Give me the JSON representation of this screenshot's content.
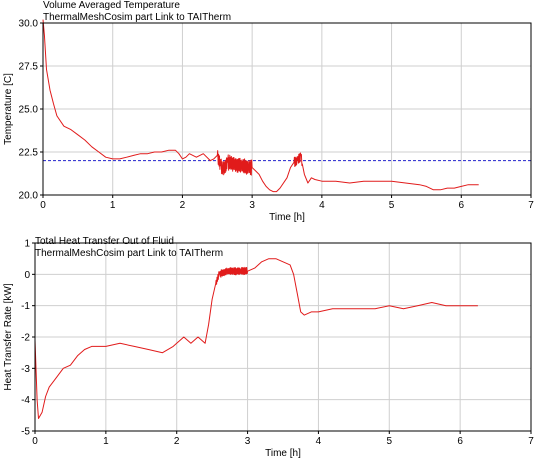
{
  "colors": {
    "series": "#e11b1b",
    "reference": "#2222cc",
    "grid": "#cfcfcf",
    "axes": "#000000"
  },
  "chart_data": [
    {
      "type": "line",
      "title": "Volume Averaged Temperature",
      "subtitle": "ThermalMeshCosim part Link  to  TAITherm",
      "xlabel": "Time [h]",
      "ylabel": "Temperature [C]",
      "xlim": [
        0,
        7
      ],
      "ylim": [
        20,
        30
      ],
      "xticks": [
        "0",
        "1",
        "2",
        "3",
        "4",
        "5",
        "6",
        "7"
      ],
      "yticks": [
        "20.0",
        "22.5",
        "25.0",
        "27.5",
        "30.0"
      ],
      "grid": true,
      "reference_line": {
        "y": 22.0,
        "style": "dashed"
      },
      "series": [
        {
          "x": [
            0,
            0.02,
            0.05,
            0.1,
            0.15,
            0.2,
            0.3,
            0.4,
            0.5,
            0.6,
            0.7,
            0.8,
            0.9,
            1.0,
            1.1,
            1.2,
            1.3,
            1.4,
            1.5,
            1.6,
            1.7,
            1.8,
            1.9,
            1.95,
            2.0,
            2.05,
            2.1,
            2.2,
            2.3,
            2.4,
            2.45,
            2.5,
            2.55,
            2.58,
            2.65,
            2.75,
            2.85,
            2.95,
            3.0,
            3.05,
            3.1,
            3.15,
            3.2,
            3.25,
            3.3,
            3.35,
            3.4,
            3.5,
            3.55,
            3.6,
            3.65,
            3.7,
            3.72,
            3.75,
            3.8,
            3.85,
            3.9,
            4.0,
            4.2,
            4.4,
            4.6,
            4.8,
            5.0,
            5.2,
            5.4,
            5.5,
            5.6,
            5.7,
            5.8,
            5.9,
            6.0,
            6.1,
            6.2,
            6.25
          ],
          "y": [
            30.2,
            29.3,
            27.3,
            26.1,
            25.3,
            24.6,
            24.0,
            23.8,
            23.5,
            23.2,
            22.8,
            22.5,
            22.2,
            22.1,
            22.1,
            22.2,
            22.3,
            22.4,
            22.4,
            22.5,
            22.5,
            22.6,
            22.6,
            22.4,
            22.1,
            22.2,
            22.4,
            22.2,
            22.4,
            22.0,
            22.1,
            22.3,
            21.7,
            21.5,
            21.9,
            21.8,
            21.7,
            21.6,
            21.6,
            21.4,
            21.2,
            20.8,
            20.5,
            20.3,
            20.2,
            20.2,
            20.4,
            21.0,
            21.6,
            21.9,
            22.0,
            22.3,
            21.8,
            21.2,
            20.7,
            21.0,
            20.9,
            20.8,
            20.8,
            20.7,
            20.8,
            20.8,
            20.8,
            20.7,
            20.6,
            20.5,
            20.3,
            20.3,
            20.4,
            20.4,
            20.5,
            20.6,
            20.6,
            20.6
          ]
        }
      ],
      "oscillations": [
        {
          "x_start": 2.5,
          "x_end": 3.0,
          "amplitude": 0.45
        },
        {
          "x_start": 3.6,
          "x_end": 3.72,
          "amplitude": 0.3
        }
      ]
    },
    {
      "type": "line",
      "title": "Total Heat Transfer Out of Fluid",
      "subtitle": "ThermalMeshCosim part Link  to  TAITherm",
      "xlabel": "Time [h]",
      "ylabel": "Heat Transfer Rate [kW]",
      "xlim": [
        0,
        7
      ],
      "ylim": [
        -5,
        1
      ],
      "xticks": [
        "0",
        "1",
        "2",
        "3",
        "4",
        "5",
        "6",
        "7"
      ],
      "yticks": [
        "-5",
        "-4",
        "-3",
        "-2",
        "-1",
        "0",
        "1"
      ],
      "grid": true,
      "series": [
        {
          "x": [
            0,
            0.03,
            0.05,
            0.1,
            0.15,
            0.2,
            0.3,
            0.4,
            0.5,
            0.6,
            0.7,
            0.8,
            1.0,
            1.2,
            1.4,
            1.6,
            1.8,
            1.95,
            2.0,
            2.05,
            2.1,
            2.2,
            2.3,
            2.4,
            2.45,
            2.5,
            2.55,
            2.6,
            2.7,
            2.8,
            2.9,
            3.0,
            3.1,
            3.2,
            3.3,
            3.4,
            3.5,
            3.6,
            3.65,
            3.7,
            3.75,
            3.8,
            3.9,
            4.0,
            4.2,
            4.4,
            4.6,
            4.8,
            5.0,
            5.2,
            5.4,
            5.6,
            5.8,
            6.0,
            6.2,
            6.25
          ],
          "y": [
            -2.1,
            -4.0,
            -4.6,
            -4.4,
            -3.9,
            -3.6,
            -3.3,
            -3.0,
            -2.9,
            -2.6,
            -2.4,
            -2.3,
            -2.3,
            -2.2,
            -2.3,
            -2.4,
            -2.5,
            -2.3,
            -2.2,
            -2.1,
            -2.0,
            -2.2,
            -2.0,
            -2.2,
            -1.6,
            -0.8,
            -0.3,
            0.0,
            0.1,
            0.1,
            0.1,
            0.1,
            0.2,
            0.4,
            0.5,
            0.5,
            0.4,
            0.3,
            0.0,
            -0.6,
            -1.2,
            -1.3,
            -1.2,
            -1.2,
            -1.1,
            -1.1,
            -1.1,
            -1.1,
            -1.0,
            -1.1,
            -1.0,
            -0.9,
            -1.0,
            -1.0,
            -1.0,
            -1.0
          ]
        }
      ],
      "oscillations": [
        {
          "x_start": 2.55,
          "x_end": 3.0,
          "amplitude": 0.12
        }
      ]
    }
  ]
}
